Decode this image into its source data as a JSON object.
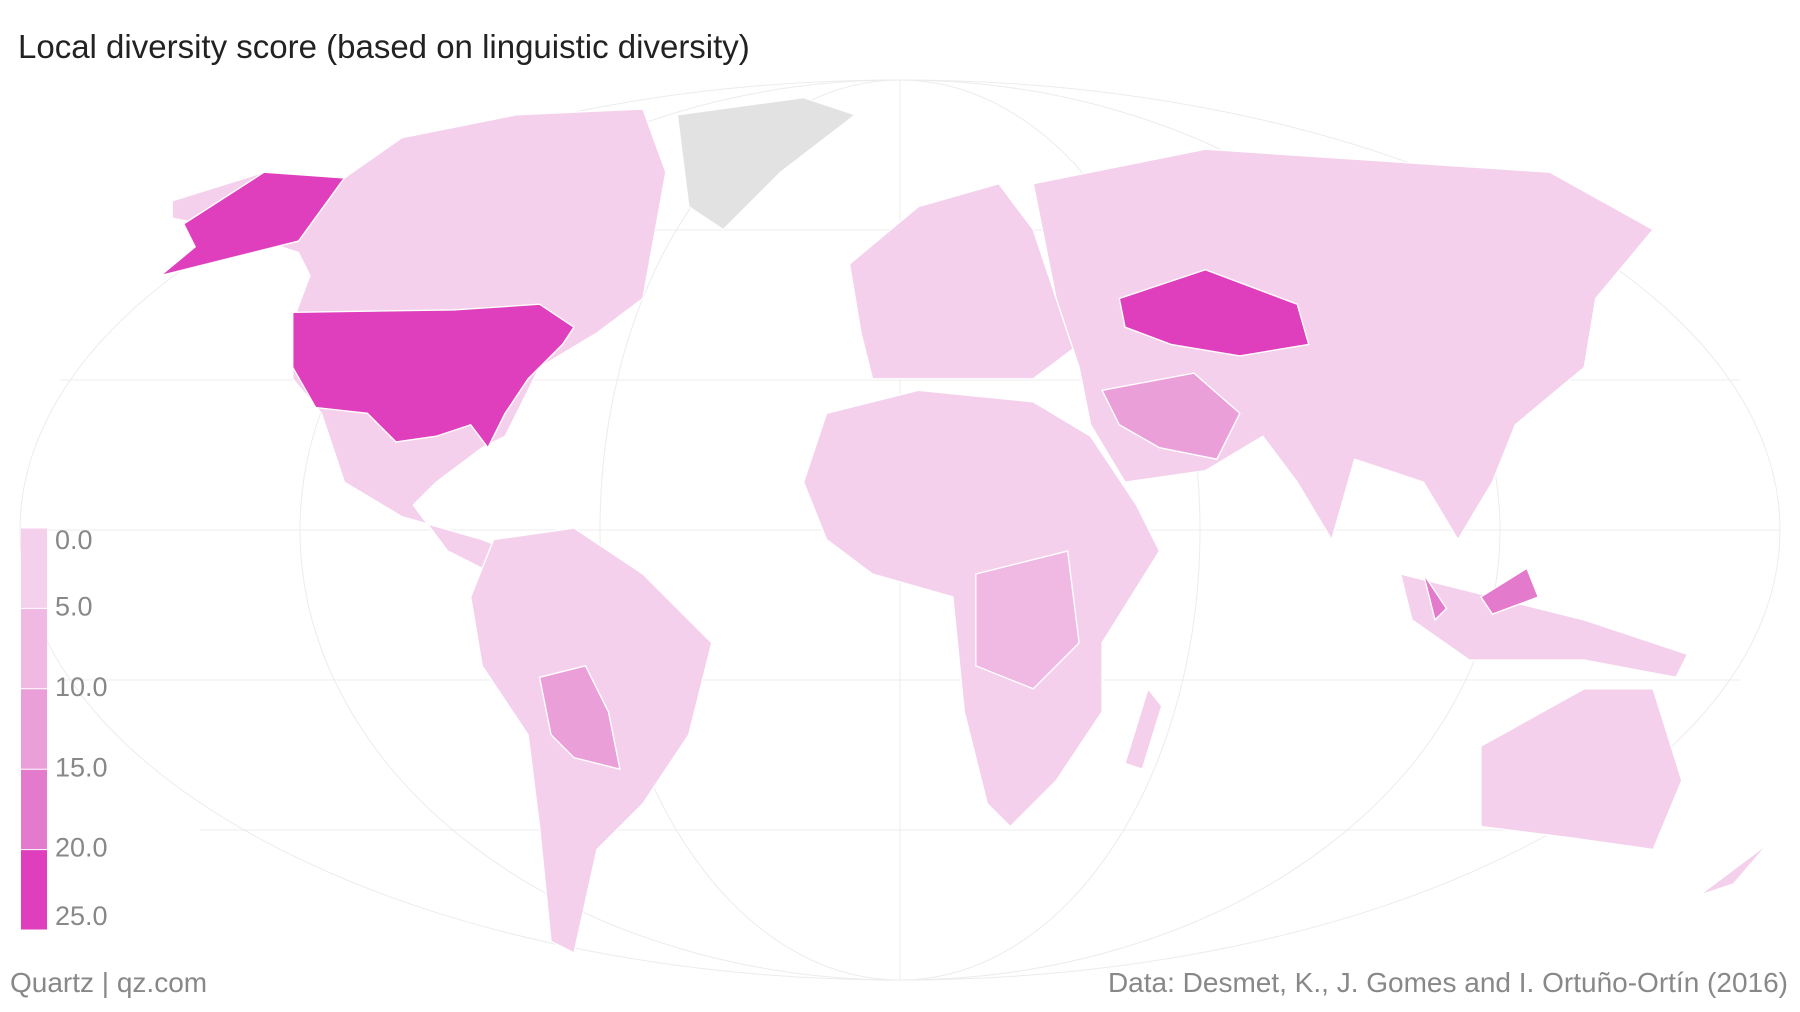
{
  "title": "Local diversity score (based on linguistic diversity)",
  "legend": {
    "ticks": [
      {
        "value": 0,
        "label": "0.0"
      },
      {
        "value": 5,
        "label": "5.0"
      },
      {
        "value": 10,
        "label": "10.0"
      },
      {
        "value": 15,
        "label": "15.0"
      },
      {
        "value": 20,
        "label": "20.0"
      },
      {
        "value": 25,
        "label": "25.0"
      }
    ],
    "colors": [
      "#f4d0ec",
      "#efb9e3",
      "#eb9fd8",
      "#e47acb",
      "#df3fbd"
    ]
  },
  "footer": {
    "source_left": "Quartz | qz.com",
    "source_right": "Data: Desmet, K., J. Gomes and I. Ortuño-Ortín (2016)"
  }
}
